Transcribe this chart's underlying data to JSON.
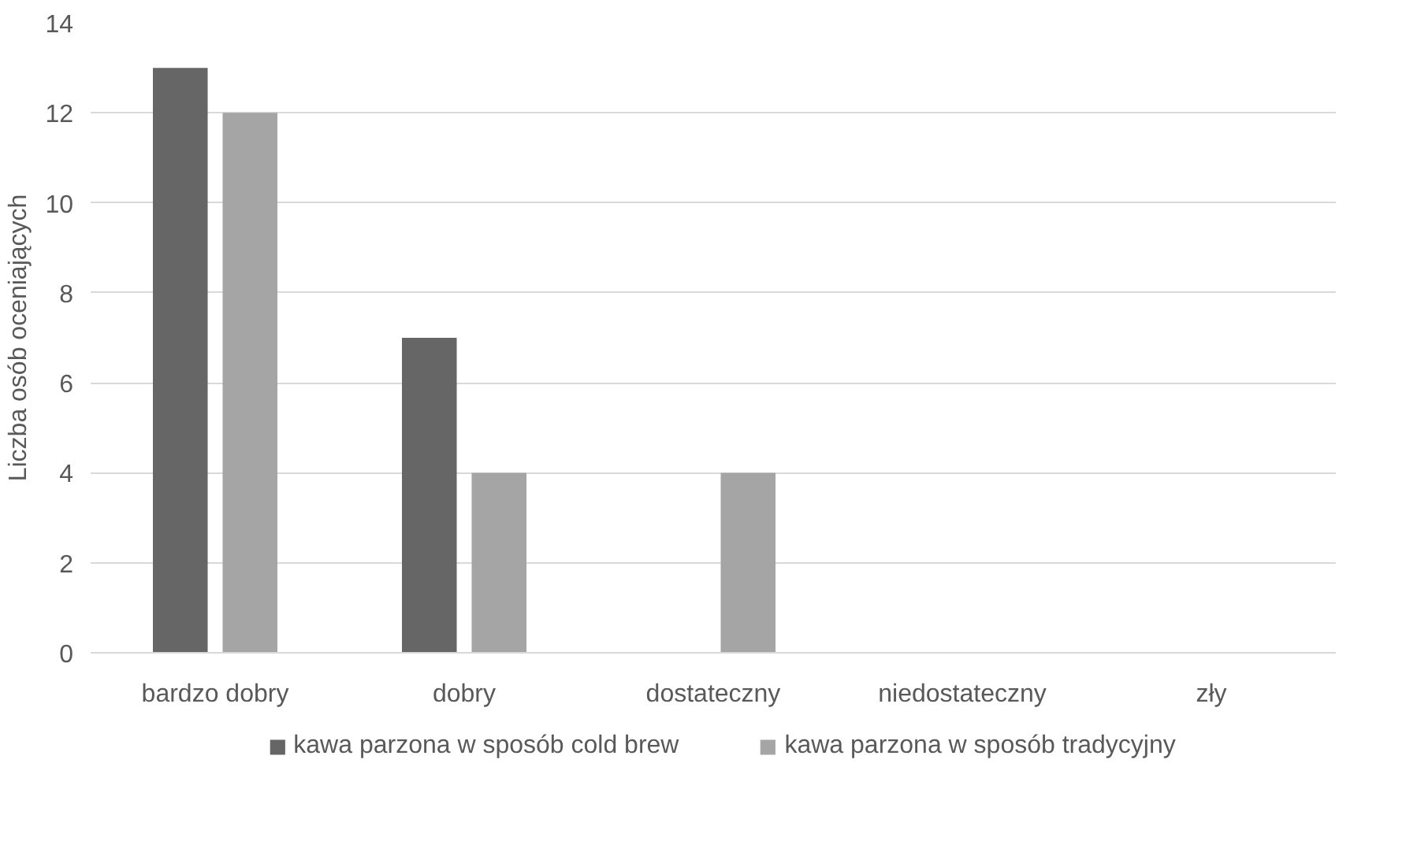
{
  "chart_data": {
    "type": "bar",
    "ylabel": "Liczba osób oceniających",
    "categories": [
      "bardzo dobry",
      "dobry",
      "dostateczny",
      "niedostateczny",
      "zły"
    ],
    "series": [
      {
        "name": "kawa parzona w sposób cold brew",
        "color": "#666666",
        "values": [
          13,
          7,
          0,
          0,
          0
        ]
      },
      {
        "name": "kawa parzona w sposób tradycyjny",
        "color": "#a5a5a5",
        "values": [
          12,
          4,
          4,
          0,
          0
        ]
      }
    ],
    "ylim": [
      0,
      14
    ],
    "yticks": [
      0,
      2,
      4,
      6,
      8,
      10,
      12,
      14
    ],
    "grid": "y",
    "legend": "bottom"
  }
}
